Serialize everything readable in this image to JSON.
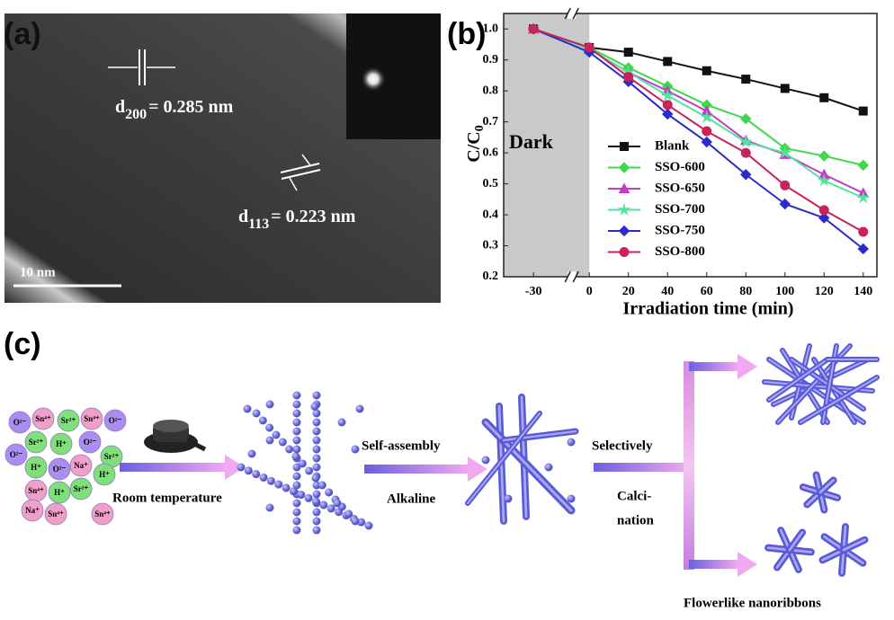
{
  "panel_a": {
    "label": "(a)",
    "d1": {
      "symbol": "d",
      "index": "200",
      "value": "= 0.285 nm"
    },
    "d2": {
      "symbol": "d",
      "index": "113",
      "value": "= 0.223 nm"
    },
    "scale_bar": "10 nm"
  },
  "chart_data": {
    "type": "line",
    "panel_label": "(b)",
    "xlabel": "Irradiation time (min)",
    "ylabel": {
      "text": "C/C",
      "subscript": "0"
    },
    "shaded_label": "Dark",
    "x": [
      -30,
      0,
      20,
      40,
      60,
      80,
      100,
      120,
      140
    ],
    "xlim": [
      -46,
      147
    ],
    "xticks": [
      -30,
      0,
      20,
      40,
      60,
      80,
      100,
      120,
      140
    ],
    "ylim": [
      0.2,
      1.05
    ],
    "yticks": [
      0.2,
      0.3,
      0.4,
      0.5,
      0.6,
      0.7,
      0.8,
      0.9,
      {
        "value": 1,
        "label": "1.0"
      }
    ],
    "series": [
      {
        "name": "Blank",
        "color": "#111111",
        "marker": "square",
        "values": [
          1.0,
          0.94,
          0.925,
          0.895,
          0.865,
          0.838,
          0.808,
          0.778,
          0.735
        ]
      },
      {
        "name": "SSO-600",
        "color": "#3fd84a",
        "marker": "diamond",
        "values": [
          1.0,
          0.94,
          0.875,
          0.815,
          0.755,
          0.71,
          0.615,
          0.59,
          0.56
        ]
      },
      {
        "name": "SSO-650",
        "color": "#c43cc8",
        "marker": "triangle",
        "values": [
          1.0,
          0.935,
          0.86,
          0.8,
          0.735,
          0.64,
          0.595,
          0.53,
          0.47
        ]
      },
      {
        "name": "SSO-700",
        "color": "#4fe59a",
        "marker": "star",
        "values": [
          1.0,
          0.935,
          0.86,
          0.785,
          0.715,
          0.635,
          0.6,
          0.51,
          0.455
        ]
      },
      {
        "name": "SSO-750",
        "color": "#2a2ad0",
        "marker": "diamond",
        "values": [
          1.0,
          0.925,
          0.83,
          0.725,
          0.635,
          0.53,
          0.435,
          0.39,
          0.29
        ]
      },
      {
        "name": "SSO-800",
        "color": "#c8245a",
        "marker": "circle",
        "values": [
          1.0,
          0.94,
          0.845,
          0.755,
          0.67,
          0.6,
          0.495,
          0.415,
          0.345
        ]
      }
    ]
  },
  "scheme": {
    "label": "(c)",
    "ions": [
      "O²⁻",
      "Sn⁴⁺",
      "Sr²⁺",
      "Sn⁴⁺",
      "O²⁻",
      "Sr²⁺",
      "H⁺",
      "O²⁻",
      "Sr²⁺",
      "O²⁻",
      "H⁺",
      "O²⁻",
      "Na⁺",
      "H⁺",
      "Sn⁴⁺",
      "H⁺",
      "Sr²⁺",
      "Sn⁴⁺",
      "Na⁺",
      "Sn⁴⁺"
    ],
    "step1": "Room temperature",
    "step2_top": "Self-assembly",
    "step2_bottom": "Alkaline",
    "step3_top": "Selectively",
    "step3_bottom": [
      "Calci-",
      "nation"
    ],
    "product": "Flowerlike nanoribbons"
  }
}
